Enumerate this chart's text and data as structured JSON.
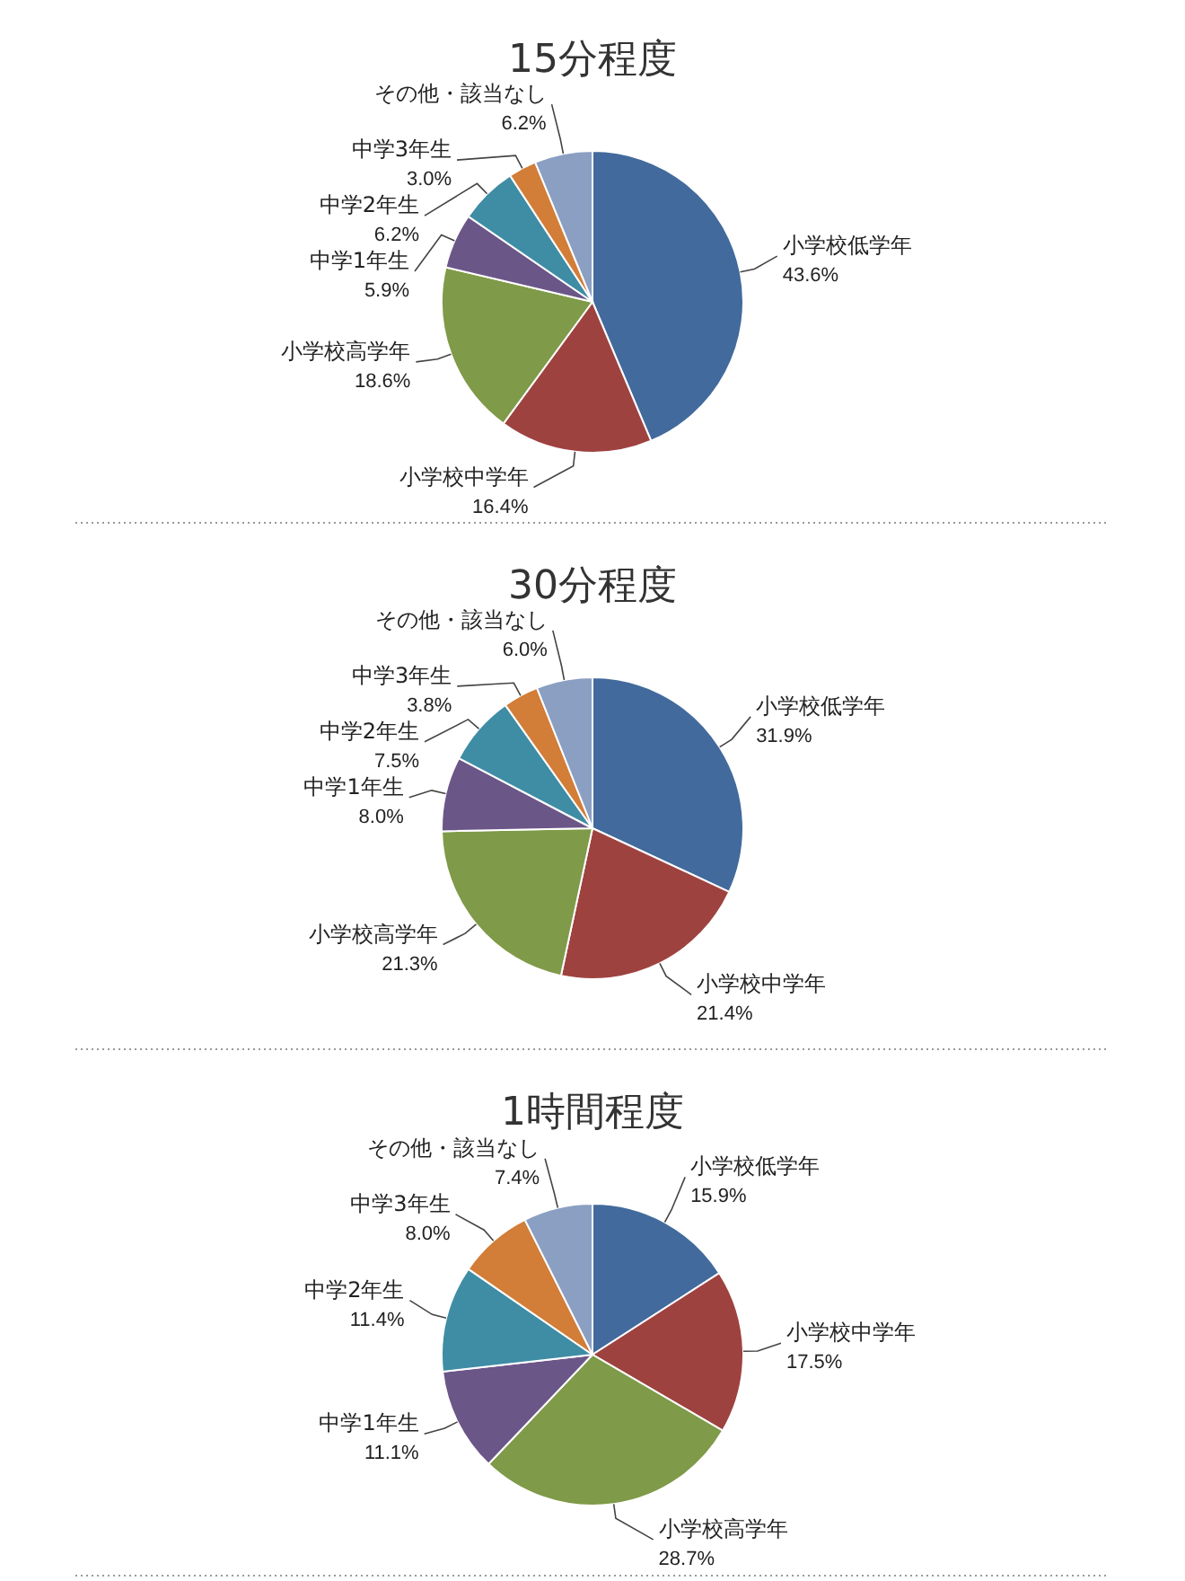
{
  "chart_data": [
    {
      "type": "pie",
      "title": "15分程度",
      "categories": [
        "小学校低学年",
        "小学校中学年",
        "小学校高学年",
        "中学1年生",
        "中学2年生",
        "中学3年生",
        "その他・該当なし"
      ],
      "values": [
        43.6,
        16.4,
        18.6,
        5.9,
        6.2,
        3.0,
        6.2
      ],
      "colors": [
        "#426a9c",
        "#9e4240",
        "#7f9a48",
        "#6b5688",
        "#3f8ca5",
        "#d27d38",
        "#8a9fc2"
      ],
      "value_labels": [
        "43.6%",
        "16.4%",
        "18.6%",
        "5.9%",
        "6.2%",
        "3.0%",
        "6.2%"
      ]
    },
    {
      "type": "pie",
      "title": "30分程度",
      "categories": [
        "小学校低学年",
        "小学校中学年",
        "小学校高学年",
        "中学1年生",
        "中学2年生",
        "中学3年生",
        "その他・該当なし"
      ],
      "values": [
        31.9,
        21.4,
        21.3,
        8.0,
        7.5,
        3.8,
        6.0
      ],
      "colors": [
        "#426a9c",
        "#9e4240",
        "#7f9a48",
        "#6b5688",
        "#3f8ca5",
        "#d27d38",
        "#8a9fc2"
      ],
      "value_labels": [
        "31.9%",
        "21.4%",
        "21.3%",
        "8.0%",
        "7.5%",
        "3.8%",
        "6.0%"
      ]
    },
    {
      "type": "pie",
      "title": "1時間程度",
      "categories": [
        "小学校低学年",
        "小学校中学年",
        "小学校高学年",
        "中学1年生",
        "中学2年生",
        "中学3年生",
        "その他・該当なし"
      ],
      "values": [
        15.9,
        17.5,
        28.7,
        11.1,
        11.4,
        8.0,
        7.4
      ],
      "colors": [
        "#426a9c",
        "#9e4240",
        "#7f9a48",
        "#6b5688",
        "#3f8ca5",
        "#d27d38",
        "#8a9fc2"
      ],
      "value_labels": [
        "15.9%",
        "17.5%",
        "28.7%",
        "11.1%",
        "11.4%",
        "8.0%",
        "7.4%"
      ]
    }
  ]
}
